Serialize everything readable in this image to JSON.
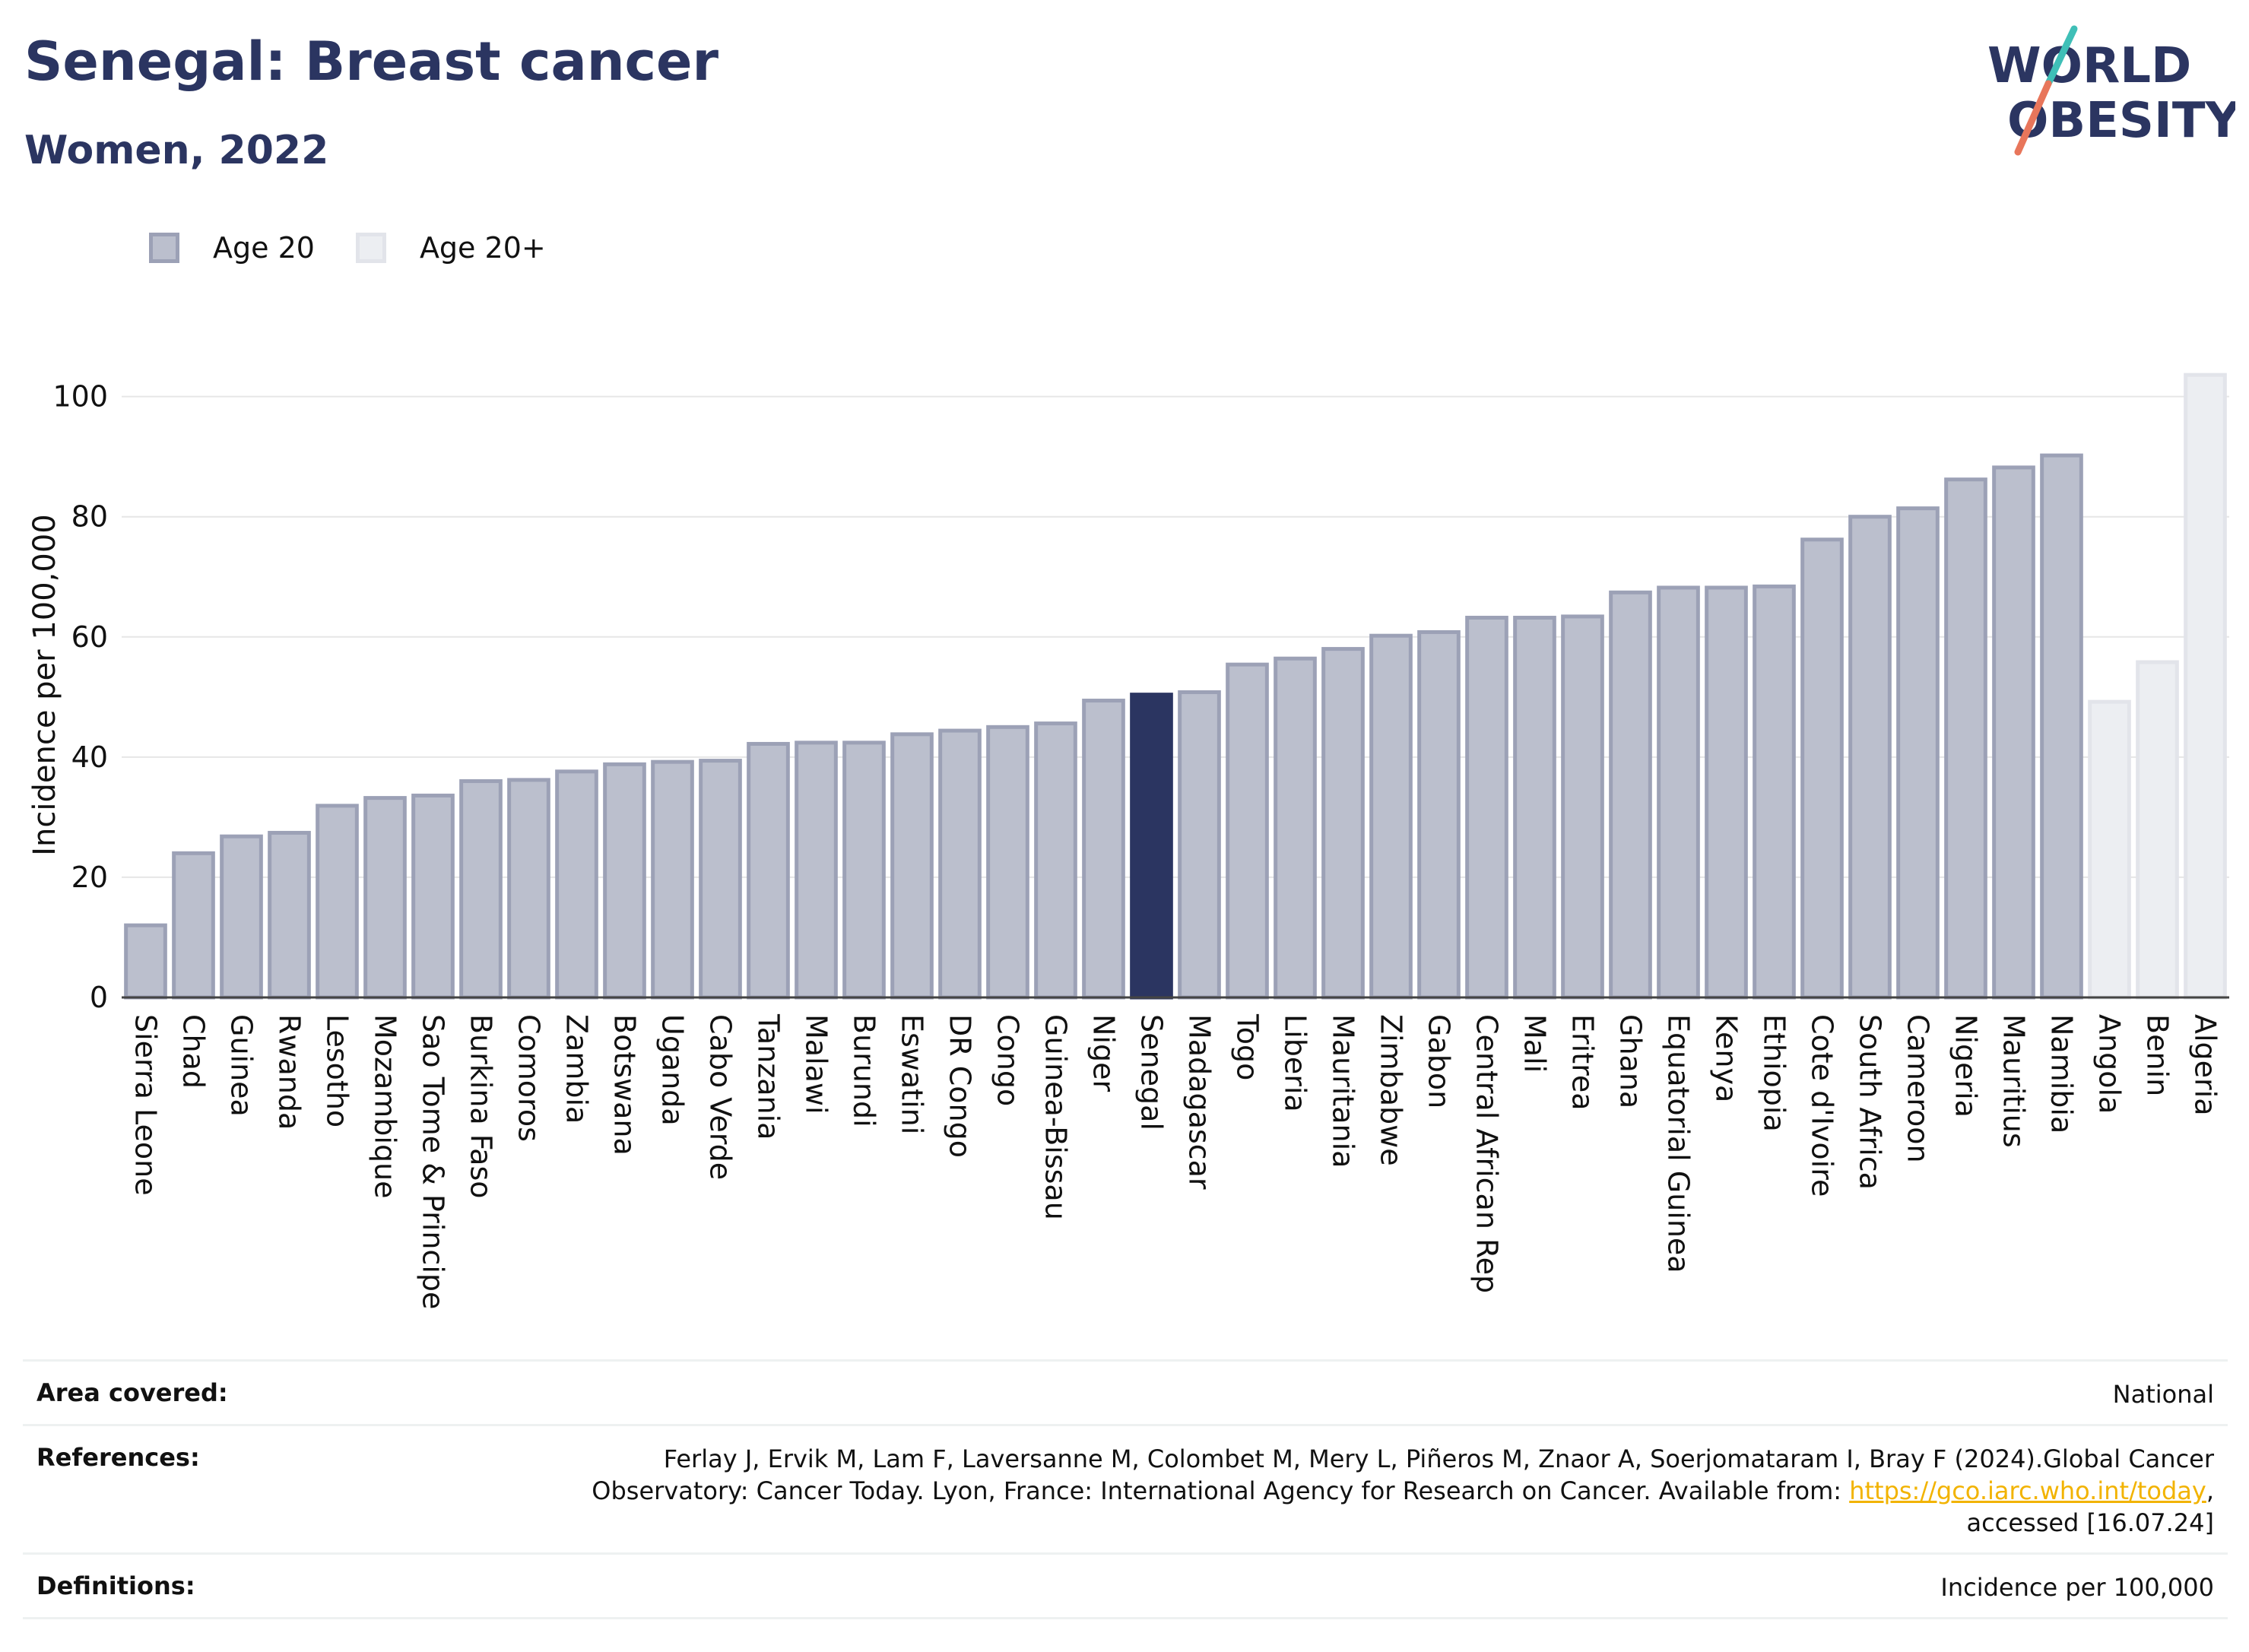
{
  "header": {
    "title": "Senegal: Breast cancer",
    "subtitle": "Women, 2022"
  },
  "logo": {
    "line1": "WORLD",
    "line2": "OBESITY",
    "colors": {
      "text": "#2b3561",
      "slash_top": "#3fbfb7",
      "slash_bottom": "#e8765b"
    }
  },
  "legend": [
    {
      "label": "Age 20",
      "color": "#bbbfcd",
      "border": "#9ca1b6"
    },
    {
      "label": "Age 20+",
      "color": "#eceef2",
      "border": "#e2e4ea"
    }
  ],
  "chart_data": {
    "type": "bar",
    "title": "Senegal: Breast cancer",
    "subtitle": "Women, 2022",
    "xlabel": "",
    "ylabel": "Incidence per 100,000",
    "ylim": [
      0,
      104
    ],
    "yticks": [
      0,
      20,
      40,
      60,
      80,
      100
    ],
    "grid": true,
    "legend_position": "top-left",
    "highlight": "Senegal",
    "colors": {
      "age20_fill": "#bbbfcd",
      "age20_border": "#9ca1b6",
      "age20plus_fill": "#eceef2",
      "age20plus_border": "#e2e4ea",
      "highlight": "#2b3561",
      "grid": "#e6e6e6",
      "axis": "#444444"
    },
    "bars": [
      {
        "category": "Sierra Leone",
        "value": 12,
        "series": "Age 20"
      },
      {
        "category": "Chad",
        "value": 24,
        "series": "Age 20"
      },
      {
        "category": "Guinea",
        "value": 26.8,
        "series": "Age 20"
      },
      {
        "category": "Rwanda",
        "value": 27.4,
        "series": "Age 20"
      },
      {
        "category": "Lesotho",
        "value": 31.9,
        "series": "Age 20"
      },
      {
        "category": "Mozambique",
        "value": 33.2,
        "series": "Age 20"
      },
      {
        "category": "Sao Tome & Principe",
        "value": 33.6,
        "series": "Age 20"
      },
      {
        "category": "Burkina Faso",
        "value": 36,
        "series": "Age 20"
      },
      {
        "category": "Comoros",
        "value": 36.2,
        "series": "Age 20"
      },
      {
        "category": "Zambia",
        "value": 37.6,
        "series": "Age 20"
      },
      {
        "category": "Botswana",
        "value": 38.8,
        "series": "Age 20"
      },
      {
        "category": "Uganda",
        "value": 39.2,
        "series": "Age 20"
      },
      {
        "category": "Cabo Verde",
        "value": 39.4,
        "series": "Age 20"
      },
      {
        "category": "Tanzania",
        "value": 42.2,
        "series": "Age 20"
      },
      {
        "category": "Malawi",
        "value": 42.4,
        "series": "Age 20"
      },
      {
        "category": "Burundi",
        "value": 42.4,
        "series": "Age 20"
      },
      {
        "category": "Eswatini",
        "value": 43.8,
        "series": "Age 20"
      },
      {
        "category": "DR Congo",
        "value": 44.4,
        "series": "Age 20"
      },
      {
        "category": "Congo",
        "value": 45,
        "series": "Age 20"
      },
      {
        "category": "Guinea-Bissau",
        "value": 45.6,
        "series": "Age 20"
      },
      {
        "category": "Niger",
        "value": 49.4,
        "series": "Age 20"
      },
      {
        "category": "Senegal",
        "value": 50.4,
        "series": "Age 20"
      },
      {
        "category": "Madagascar",
        "value": 50.8,
        "series": "Age 20"
      },
      {
        "category": "Togo",
        "value": 55.4,
        "series": "Age 20"
      },
      {
        "category": "Liberia",
        "value": 56.4,
        "series": "Age 20"
      },
      {
        "category": "Mauritania",
        "value": 58,
        "series": "Age 20"
      },
      {
        "category": "Zimbabwe",
        "value": 60.2,
        "series": "Age 20"
      },
      {
        "category": "Gabon",
        "value": 60.8,
        "series": "Age 20"
      },
      {
        "category": "Central African Rep",
        "value": 63.2,
        "series": "Age 20"
      },
      {
        "category": "Mali",
        "value": 63.2,
        "series": "Age 20"
      },
      {
        "category": "Eritrea",
        "value": 63.4,
        "series": "Age 20"
      },
      {
        "category": "Ghana",
        "value": 67.4,
        "series": "Age 20"
      },
      {
        "category": "Equatorial Guinea",
        "value": 68.2,
        "series": "Age 20"
      },
      {
        "category": "Kenya",
        "value": 68.2,
        "series": "Age 20"
      },
      {
        "category": "Ethiopia",
        "value": 68.4,
        "series": "Age 20"
      },
      {
        "category": "Cote d'Ivoire",
        "value": 76.2,
        "series": "Age 20"
      },
      {
        "category": "South Africa",
        "value": 80,
        "series": "Age 20"
      },
      {
        "category": "Cameroon",
        "value": 81.4,
        "series": "Age 20"
      },
      {
        "category": "Nigeria",
        "value": 86.2,
        "series": "Age 20"
      },
      {
        "category": "Mauritius",
        "value": 88.2,
        "series": "Age 20"
      },
      {
        "category": "Namibia",
        "value": 90.2,
        "series": "Age 20"
      },
      {
        "category": "Angola",
        "value": 49.2,
        "series": "Age 20+"
      },
      {
        "category": "Benin",
        "value": 55.8,
        "series": "Age 20+"
      },
      {
        "category": "Algeria",
        "value": 103.6,
        "series": "Age 20+"
      }
    ]
  },
  "footer": {
    "area_label": "Area covered:",
    "area_value": "National",
    "references_label": "References:",
    "references_text": "Ferlay J, Ervik M, Lam F, Laversanne M, Colombet M, Mery L, Piñeros M, Znaor A, Soerjomataram I, Bray F (2024).Global Cancer Observatory: Cancer Today. Lyon, France: International Agency for Research on Cancer. Available from:",
    "references_link": "https://gco.iarc.who.int/today",
    "references_suffix": ", accessed [16.07.24]",
    "definitions_label": "Definitions:",
    "definitions_value": "Incidence per 100,000"
  }
}
